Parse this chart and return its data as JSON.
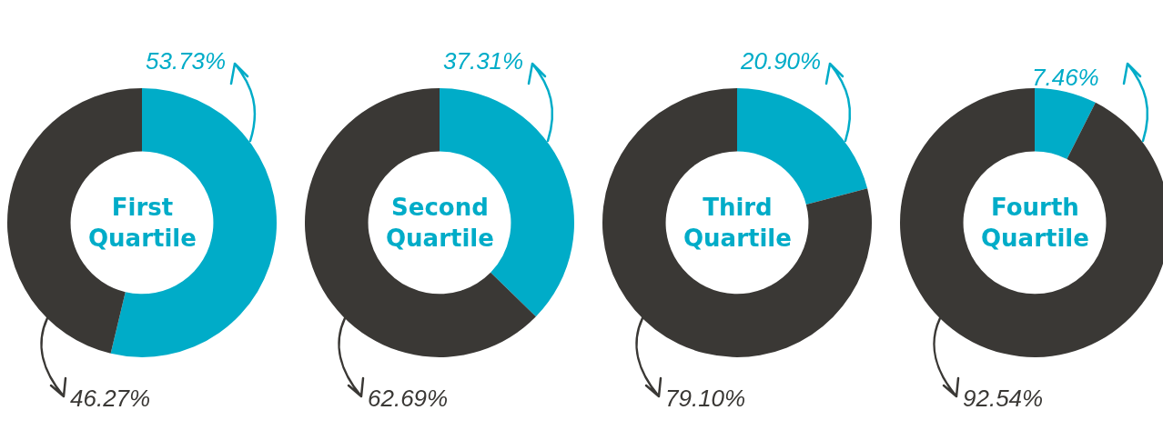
{
  "chart_data": [
    {
      "type": "donut",
      "title": "First Quartile",
      "categories": [
        null,
        null
      ],
      "values": [
        53.73,
        46.27
      ],
      "colors": [
        "#00acc8",
        "#3a3835"
      ],
      "value_labels": [
        "53.73%",
        "46.27%"
      ]
    },
    {
      "type": "donut",
      "title": "Second Quartile",
      "categories": [
        null,
        null
      ],
      "values": [
        37.31,
        62.69
      ],
      "colors": [
        "#00acc8",
        "#3a3835"
      ],
      "value_labels": [
        "37.31%",
        "62.69%"
      ]
    },
    {
      "type": "donut",
      "title": "Third Quartile",
      "categories": [
        null,
        null
      ],
      "values": [
        20.9,
        79.1
      ],
      "colors": [
        "#00acc8",
        "#3a3835"
      ],
      "value_labels": [
        "20.90%",
        "79.10%"
      ]
    },
    {
      "type": "donut",
      "title": "Fourth Quartile",
      "categories": [
        null,
        null
      ],
      "values": [
        7.46,
        92.54
      ],
      "colors": [
        "#00acc8",
        "#3a3835"
      ],
      "value_labels": [
        "7.46%",
        "92.54%"
      ]
    }
  ]
}
